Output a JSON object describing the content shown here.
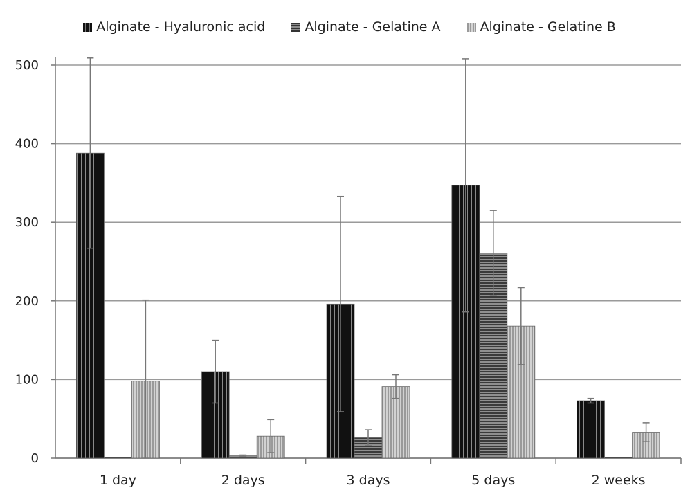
{
  "chart_data": {
    "type": "bar",
    "title": "",
    "xlabel": "",
    "ylabel": "",
    "ylim": [
      0,
      500
    ],
    "yticks": [
      0,
      100,
      200,
      300,
      400,
      500
    ],
    "grid": true,
    "legend_position": "top",
    "categories": [
      "1 day",
      "2 days",
      "3 days",
      "5 days",
      "2 weeks"
    ],
    "series": [
      {
        "name": "Alginate - Hyaluronic acid",
        "values": [
          388,
          110,
          196,
          347,
          73
        ],
        "error": [
          121,
          40,
          137,
          161,
          3
        ],
        "pattern": "vertical-dark"
      },
      {
        "name": "Alginate - Gelatine A",
        "values": [
          1,
          3,
          26,
          261,
          0
        ],
        "error": [
          0,
          1,
          10,
          54,
          0
        ],
        "pattern": "horizontal-dark"
      },
      {
        "name": "Alginate - Gelatine B",
        "values": [
          98,
          28,
          91,
          168,
          33
        ],
        "error": [
          103,
          21,
          15,
          49,
          12
        ],
        "pattern": "vertical-light"
      }
    ]
  }
}
